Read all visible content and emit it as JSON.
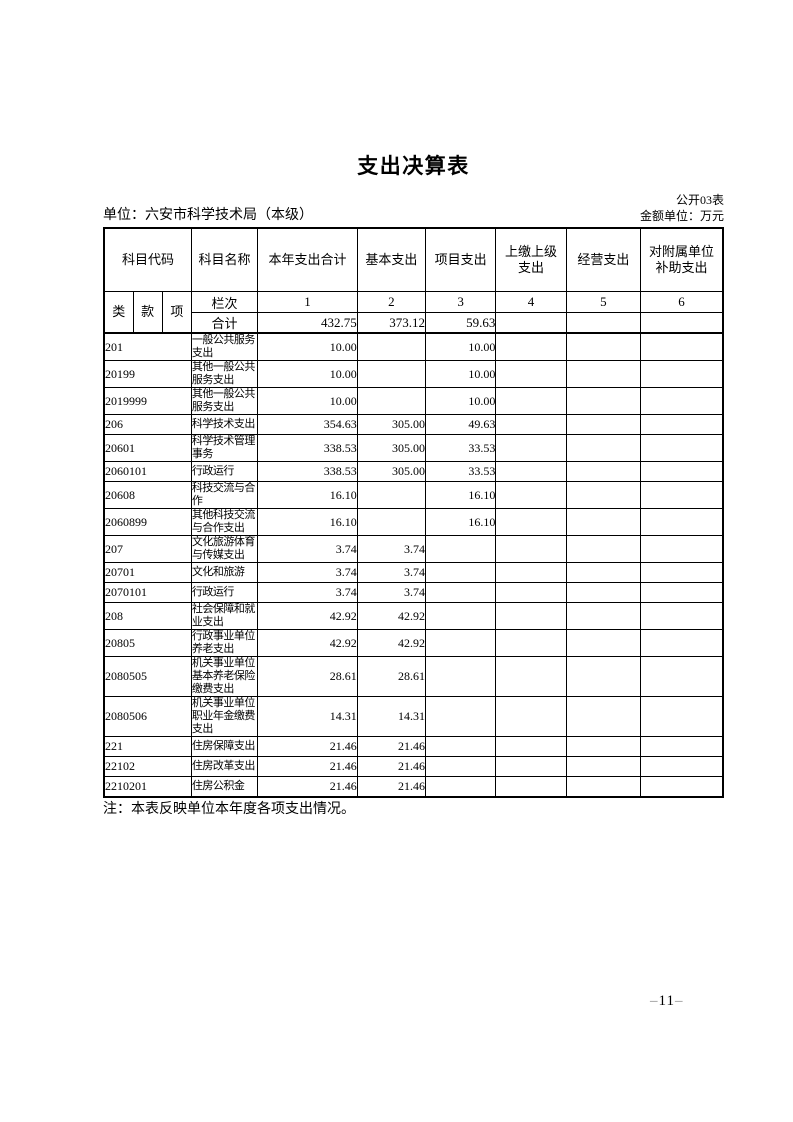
{
  "page": {
    "title": "支出决算表",
    "form_code": "公开03表",
    "unit_line": "单位：六安市科学技术局（本级）",
    "amount_unit_line": "金额单位：万元",
    "note": "注：本表反映单位本年度各项支出情况。",
    "page_number": {
      "dash": "–",
      "value": "11"
    }
  },
  "table": {
    "header": {
      "code_label": "科目代码",
      "code_sub_labels": [
        "类",
        "款",
        "项"
      ],
      "name_label": "科目名称",
      "value_col_labels": [
        "本年支出合计",
        "基本支出",
        "项目支出",
        "上缴上级\n支出",
        "经营支出",
        "对附属单位\n补助支出"
      ],
      "rank_label": "栏次",
      "rank_values": [
        "1",
        "2",
        "3",
        "4",
        "5",
        "6"
      ],
      "total_label": "合计",
      "total_values": [
        "432.75",
        "373.12",
        "59.63",
        "",
        "",
        ""
      ]
    },
    "rows": [
      {
        "code": "201",
        "name": "一般公共服务支出",
        "values": [
          "10.00",
          "",
          "10.00",
          "",
          "",
          ""
        ]
      },
      {
        "code": "20199",
        "name": "其他一般公共服务支出",
        "values": [
          "10.00",
          "",
          "10.00",
          "",
          "",
          ""
        ]
      },
      {
        "code": "2019999",
        "name": "其他一般公共服务支出",
        "values": [
          "10.00",
          "",
          "10.00",
          "",
          "",
          ""
        ]
      },
      {
        "code": "206",
        "name": "科学技术支出",
        "values": [
          "354.63",
          "305.00",
          "49.63",
          "",
          "",
          ""
        ]
      },
      {
        "code": "20601",
        "name": "科学技术管理事务",
        "values": [
          "338.53",
          "305.00",
          "33.53",
          "",
          "",
          ""
        ]
      },
      {
        "code": "2060101",
        "name": "行政运行",
        "values": [
          "338.53",
          "305.00",
          "33.53",
          "",
          "",
          ""
        ]
      },
      {
        "code": "20608",
        "name": "科技交流与合作",
        "values": [
          "16.10",
          "",
          "16.10",
          "",
          "",
          ""
        ]
      },
      {
        "code": "2060899",
        "name": "其他科技交流与合作支出",
        "values": [
          "16.10",
          "",
          "16.10",
          "",
          "",
          ""
        ]
      },
      {
        "code": "207",
        "name": "文化旅游体育与传媒支出",
        "values": [
          "3.74",
          "3.74",
          "",
          "",
          "",
          ""
        ]
      },
      {
        "code": "20701",
        "name": "文化和旅游",
        "values": [
          "3.74",
          "3.74",
          "",
          "",
          "",
          ""
        ]
      },
      {
        "code": "2070101",
        "name": "行政运行",
        "values": [
          "3.74",
          "3.74",
          "",
          "",
          "",
          ""
        ]
      },
      {
        "code": "208",
        "name": "社会保障和就业支出",
        "values": [
          "42.92",
          "42.92",
          "",
          "",
          "",
          ""
        ]
      },
      {
        "code": "20805",
        "name": "行政事业单位养老支出",
        "values": [
          "42.92",
          "42.92",
          "",
          "",
          "",
          ""
        ]
      },
      {
        "code": "2080505",
        "name": "机关事业单位基本养老保险缴费支出",
        "values": [
          "28.61",
          "28.61",
          "",
          "",
          "",
          ""
        ]
      },
      {
        "code": "2080506",
        "name": "机关事业单位职业年金缴费支出",
        "values": [
          "14.31",
          "14.31",
          "",
          "",
          "",
          ""
        ]
      },
      {
        "code": "221",
        "name": "住房保障支出",
        "values": [
          "21.46",
          "21.46",
          "",
          "",
          "",
          ""
        ]
      },
      {
        "code": "22102",
        "name": "住房改革支出",
        "values": [
          "21.46",
          "21.46",
          "",
          "",
          "",
          ""
        ]
      },
      {
        "code": "2210201",
        "name": "住房公积金",
        "values": [
          "21.46",
          "21.46",
          "",
          "",
          "",
          ""
        ]
      }
    ]
  }
}
